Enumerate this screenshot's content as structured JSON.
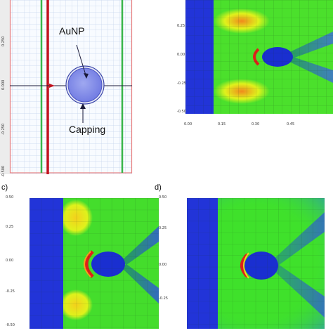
{
  "panel_a": {
    "nanoparticle_label": "AuNP",
    "capping_label": "Capping",
    "y_ticks": [
      "0.250",
      "0.000",
      "-0.250",
      "-0.500"
    ]
  },
  "panel_b": {
    "y_ticks": [
      "0.25",
      "0.00",
      "-0.25",
      "-0.50"
    ],
    "x_ticks": [
      "0.00",
      "0.15",
      "0.30",
      "0.45"
    ]
  },
  "panel_c": {
    "letter": "c)",
    "y_ticks": [
      "0.50",
      "0.25",
      "0.00",
      "-0.25",
      "-0.50"
    ]
  },
  "panel_d": {
    "letter": "d)",
    "y_ticks": [
      "0.50",
      "0.25",
      "0.00",
      "-0.25"
    ]
  },
  "colors": {
    "blue_layer": "#1f2fd8",
    "green_field": "#3fe12b",
    "yellow_field": "#d8f21a",
    "hot_spot": "#f05a12",
    "grid_line": "#b8c8e8",
    "frame_red": "#e04848",
    "frame_green": "#39b54a"
  }
}
